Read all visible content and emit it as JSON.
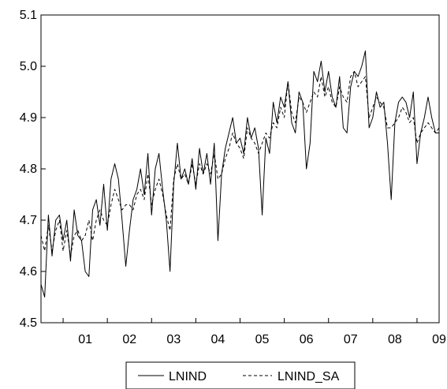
{
  "chart_data": {
    "type": "line",
    "title": "",
    "xlabel": "",
    "ylabel": "",
    "ylim": [
      4.5,
      5.1
    ],
    "y_ticks": [
      "4.5",
      "4.6",
      "4.7",
      "4.8",
      "4.9",
      "5.0",
      "5.1"
    ],
    "x_tick_labels": [
      "01",
      "02",
      "03",
      "04",
      "05",
      "06",
      "07",
      "08",
      "09"
    ],
    "xlim": [
      2000.5,
      2009.5
    ],
    "grid": false,
    "legend_position": "bottom-center",
    "series": [
      {
        "name": "LNIND",
        "style": "solid",
        "color": "#000000",
        "x": [
          2000.5,
          2000.583,
          2000.667,
          2000.75,
          2000.833,
          2000.917,
          2001.0,
          2001.083,
          2001.167,
          2001.25,
          2001.333,
          2001.417,
          2001.5,
          2001.583,
          2001.667,
          2001.75,
          2001.833,
          2001.917,
          2002.0,
          2002.083,
          2002.167,
          2002.25,
          2002.333,
          2002.417,
          2002.5,
          2002.583,
          2002.667,
          2002.75,
          2002.833,
          2002.917,
          2003.0,
          2003.083,
          2003.167,
          2003.25,
          2003.333,
          2003.417,
          2003.5,
          2003.583,
          2003.667,
          2003.75,
          2003.833,
          2003.917,
          2004.0,
          2004.083,
          2004.167,
          2004.25,
          2004.333,
          2004.417,
          2004.5,
          2004.583,
          2004.667,
          2004.75,
          2004.833,
          2004.917,
          2005.0,
          2005.083,
          2005.167,
          2005.25,
          2005.333,
          2005.417,
          2005.5,
          2005.583,
          2005.667,
          2005.75,
          2005.833,
          2005.917,
          2006.0,
          2006.083,
          2006.167,
          2006.25,
          2006.333,
          2006.417,
          2006.5,
          2006.583,
          2006.667,
          2006.75,
          2006.833,
          2006.917,
          2007.0,
          2007.083,
          2007.167,
          2007.25,
          2007.333,
          2007.417,
          2007.5,
          2007.583,
          2007.667,
          2007.75,
          2007.833,
          2007.917,
          2008.0,
          2008.083,
          2008.167,
          2008.25,
          2008.333,
          2008.417,
          2008.5,
          2008.583,
          2008.667,
          2008.75,
          2008.833,
          2008.917,
          2009.0,
          2009.083,
          2009.167,
          2009.25,
          2009.333,
          2009.417,
          2009.5
        ],
        "values": [
          4.575,
          4.55,
          4.71,
          4.63,
          4.7,
          4.71,
          4.66,
          4.7,
          4.62,
          4.72,
          4.67,
          4.66,
          4.6,
          4.59,
          4.72,
          4.74,
          4.69,
          4.77,
          4.68,
          4.78,
          4.81,
          4.78,
          4.7,
          4.61,
          4.68,
          4.74,
          4.76,
          4.8,
          4.75,
          4.83,
          4.71,
          4.8,
          4.83,
          4.76,
          4.7,
          4.6,
          4.77,
          4.85,
          4.78,
          4.8,
          4.77,
          4.82,
          4.76,
          4.84,
          4.79,
          4.83,
          4.77,
          4.85,
          4.66,
          4.79,
          4.84,
          4.87,
          4.9,
          4.85,
          4.86,
          4.83,
          4.9,
          4.86,
          4.88,
          4.84,
          4.71,
          4.86,
          4.83,
          4.93,
          4.89,
          4.94,
          4.92,
          4.97,
          4.89,
          4.87,
          4.95,
          4.93,
          4.8,
          4.85,
          4.99,
          4.97,
          5.01,
          4.95,
          4.99,
          4.94,
          4.92,
          4.98,
          4.88,
          4.87,
          4.96,
          4.99,
          4.98,
          5.0,
          5.03,
          4.88,
          4.9,
          4.95,
          4.92,
          4.93,
          4.85,
          4.74,
          4.89,
          4.93,
          4.94,
          4.93,
          4.9,
          4.95,
          4.81,
          4.87,
          4.9,
          4.94,
          4.9,
          4.87,
          4.87
        ]
      },
      {
        "name": "LNIND_SA",
        "style": "dashed",
        "color": "#000000",
        "x": [
          2000.5,
          2000.583,
          2000.667,
          2000.75,
          2000.833,
          2000.917,
          2001.0,
          2001.083,
          2001.167,
          2001.25,
          2001.333,
          2001.417,
          2001.5,
          2001.583,
          2001.667,
          2001.75,
          2001.833,
          2001.917,
          2002.0,
          2002.083,
          2002.167,
          2002.25,
          2002.333,
          2002.417,
          2002.5,
          2002.583,
          2002.667,
          2002.75,
          2002.833,
          2002.917,
          2003.0,
          2003.083,
          2003.167,
          2003.25,
          2003.333,
          2003.417,
          2003.5,
          2003.583,
          2003.667,
          2003.75,
          2003.833,
          2003.917,
          2004.0,
          2004.083,
          2004.167,
          2004.25,
          2004.333,
          2004.417,
          2004.5,
          2004.583,
          2004.667,
          2004.75,
          2004.833,
          2004.917,
          2005.0,
          2005.083,
          2005.167,
          2005.25,
          2005.333,
          2005.417,
          2005.5,
          2005.583,
          2005.667,
          2005.75,
          2005.833,
          2005.917,
          2006.0,
          2006.083,
          2006.167,
          2006.25,
          2006.333,
          2006.417,
          2006.5,
          2006.583,
          2006.667,
          2006.75,
          2006.833,
          2006.917,
          2007.0,
          2007.083,
          2007.167,
          2007.25,
          2007.333,
          2007.417,
          2007.5,
          2007.583,
          2007.667,
          2007.75,
          2007.833,
          2007.917,
          2008.0,
          2008.083,
          2008.167,
          2008.25,
          2008.333,
          2008.417,
          2008.5,
          2008.583,
          2008.667,
          2008.75,
          2008.833,
          2008.917,
          2009.0,
          2009.083,
          2009.167,
          2009.25,
          2009.333,
          2009.417,
          2009.5
        ],
        "values": [
          4.67,
          4.64,
          4.69,
          4.64,
          4.68,
          4.7,
          4.64,
          4.68,
          4.63,
          4.67,
          4.68,
          4.66,
          4.67,
          4.7,
          4.66,
          4.7,
          4.72,
          4.7,
          4.69,
          4.73,
          4.76,
          4.74,
          4.72,
          4.73,
          4.73,
          4.72,
          4.75,
          4.76,
          4.74,
          4.79,
          4.73,
          4.76,
          4.78,
          4.75,
          4.71,
          4.68,
          4.78,
          4.81,
          4.78,
          4.79,
          4.77,
          4.81,
          4.77,
          4.81,
          4.79,
          4.81,
          4.79,
          4.83,
          4.78,
          4.79,
          4.82,
          4.84,
          4.87,
          4.85,
          4.84,
          4.82,
          4.88,
          4.86,
          4.85,
          4.83,
          4.85,
          4.87,
          4.86,
          4.89,
          4.88,
          4.92,
          4.9,
          4.97,
          4.91,
          4.89,
          4.94,
          4.93,
          4.91,
          4.93,
          4.95,
          4.94,
          4.98,
          4.94,
          4.96,
          4.93,
          4.92,
          4.96,
          4.94,
          4.93,
          4.98,
          4.99,
          4.96,
          4.97,
          4.98,
          4.9,
          4.92,
          4.94,
          4.93,
          4.92,
          4.88,
          4.88,
          4.89,
          4.9,
          4.92,
          4.91,
          4.89,
          4.9,
          4.85,
          4.87,
          4.88,
          4.89,
          4.88,
          4.87,
          4.88
        ]
      }
    ]
  }
}
